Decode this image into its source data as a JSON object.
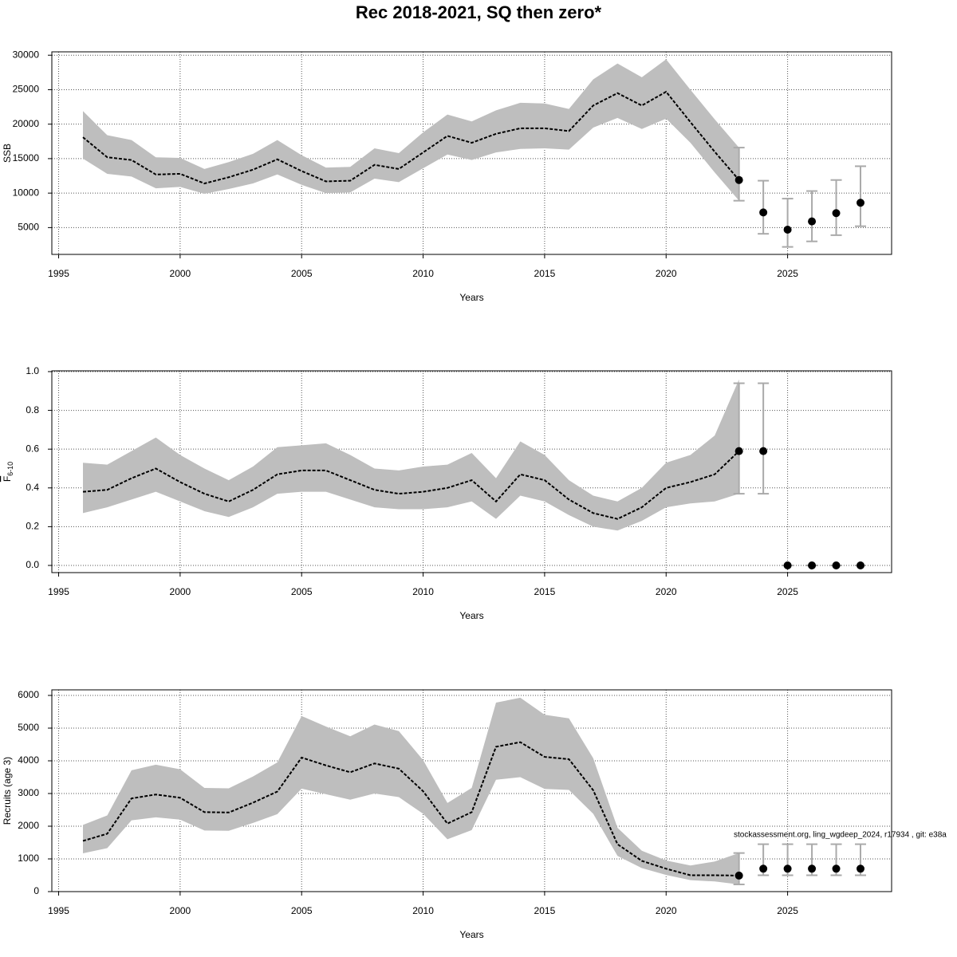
{
  "title": "Rec 2018-2021, SQ then zero*",
  "annotation": "stockassessment.org, ling_wgdeep_2024, r17934 , git: e38a",
  "chart_data": [
    {
      "type": "band-line",
      "ylabel": "SSB",
      "xlabel": "Years",
      "band_color": "#bebebe",
      "line_color": "#000000",
      "errorbar_color": "#aaaaaa",
      "grid": true,
      "xlim": [
        1994.72,
        2029.28
      ],
      "xticks": [
        1995,
        2000,
        2005,
        2010,
        2015,
        2020,
        2025
      ],
      "ylim": [
        1112,
        30488
      ],
      "yticks": [
        5000,
        10000,
        15000,
        20000,
        25000,
        30000
      ],
      "x": [
        1996,
        1997,
        1998,
        1999,
        2000,
        2001,
        2002,
        2003,
        2004,
        2005,
        2006,
        2007,
        2008,
        2009,
        2010,
        2011,
        2012,
        2013,
        2014,
        2015,
        2016,
        2017,
        2018,
        2019,
        2020,
        2021,
        2022,
        2023
      ],
      "values": [
        18100,
        15200,
        14800,
        12700,
        12800,
        11400,
        12300,
        13400,
        14900,
        13200,
        11700,
        11800,
        14100,
        13500,
        15900,
        18300,
        17300,
        18600,
        19400,
        19400,
        19000,
        22700,
        24500,
        22700,
        24700,
        20300,
        16000,
        11900
      ],
      "lower": [
        15000,
        12800,
        12400,
        10700,
        10900,
        9900,
        10600,
        11400,
        12700,
        11200,
        10000,
        10100,
        12100,
        11600,
        13600,
        15600,
        14800,
        15900,
        16400,
        16500,
        16300,
        19500,
        20900,
        19300,
        20800,
        17300,
        13000,
        8900
      ],
      "upper": [
        21900,
        18400,
        17700,
        15200,
        15100,
        13500,
        14500,
        15700,
        17700,
        15500,
        13700,
        13800,
        16500,
        15800,
        18800,
        21400,
        20400,
        22000,
        23100,
        23000,
        22200,
        26500,
        28800,
        26800,
        29400,
        25000,
        20700,
        16600
      ],
      "forecast": {
        "x": [
          2023,
          2024,
          2025,
          2026,
          2027,
          2028
        ],
        "values": [
          11900,
          7200,
          4700,
          5900,
          7100,
          8600
        ],
        "lower": [
          8900,
          4100,
          2200,
          3000,
          3900,
          5200
        ],
        "upper": [
          16600,
          11800,
          9200,
          10300,
          11900,
          13900
        ]
      }
    },
    {
      "type": "band-line",
      "ylabel": "F",
      "ylabel_subscript": "6-10",
      "xlabel": "Years",
      "band_color": "#bebebe",
      "line_color": "#000000",
      "errorbar_color": "#aaaaaa",
      "grid": true,
      "xlim": [
        1994.72,
        2029.28
      ],
      "xticks": [
        1995,
        2000,
        2005,
        2010,
        2015,
        2020,
        2025
      ],
      "ylim": [
        -0.037,
        1.004
      ],
      "yticks": [
        {
          "value": 0,
          "label": "0.0"
        },
        0.2,
        0.4,
        0.6,
        0.8,
        {
          "value": 1,
          "label": "1.0"
        }
      ],
      "x": [
        1996,
        1997,
        1998,
        1999,
        2000,
        2001,
        2002,
        2003,
        2004,
        2005,
        2006,
        2007,
        2008,
        2009,
        2010,
        2011,
        2012,
        2013,
        2014,
        2015,
        2016,
        2017,
        2018,
        2019,
        2020,
        2021,
        2022,
        2023
      ],
      "values": [
        0.38,
        0.39,
        0.45,
        0.5,
        0.43,
        0.37,
        0.33,
        0.39,
        0.47,
        0.49,
        0.49,
        0.44,
        0.39,
        0.37,
        0.38,
        0.4,
        0.44,
        0.33,
        0.47,
        0.44,
        0.34,
        0.27,
        0.24,
        0.3,
        0.4,
        0.43,
        0.47,
        0.59
      ],
      "lower": [
        0.27,
        0.3,
        0.34,
        0.38,
        0.33,
        0.28,
        0.25,
        0.3,
        0.37,
        0.38,
        0.38,
        0.34,
        0.3,
        0.29,
        0.29,
        0.3,
        0.33,
        0.24,
        0.36,
        0.33,
        0.26,
        0.2,
        0.18,
        0.23,
        0.3,
        0.32,
        0.33,
        0.37
      ],
      "upper": [
        0.53,
        0.52,
        0.59,
        0.66,
        0.57,
        0.5,
        0.44,
        0.51,
        0.61,
        0.62,
        0.63,
        0.57,
        0.5,
        0.49,
        0.51,
        0.52,
        0.58,
        0.45,
        0.64,
        0.57,
        0.44,
        0.36,
        0.33,
        0.4,
        0.53,
        0.57,
        0.67,
        0.96
      ],
      "forecast": {
        "x": [
          2023,
          2024,
          2025,
          2026,
          2027,
          2028
        ],
        "values": [
          0.59,
          0.59,
          0,
          0,
          0,
          0
        ],
        "lower": [
          0.37,
          0.37,
          0,
          0,
          0,
          0
        ],
        "upper": [
          0.94,
          0.94,
          0,
          0,
          0,
          0
        ]
      }
    },
    {
      "type": "band-line",
      "ylabel": "Recruits (age 3)",
      "xlabel": "Years",
      "band_color": "#bebebe",
      "line_color": "#000000",
      "errorbar_color": "#aaaaaa",
      "grid": true,
      "xlim": [
        1994.72,
        2029.28
      ],
      "xticks": [
        1995,
        2000,
        2005,
        2010,
        2015,
        2020,
        2025
      ],
      "ylim": [
        0,
        6171
      ],
      "yticks": [
        0,
        1000,
        2000,
        3000,
        4000,
        5000,
        6000
      ],
      "x": [
        1996,
        1997,
        1998,
        1999,
        2000,
        2001,
        2002,
        2003,
        2004,
        2005,
        2006,
        2007,
        2008,
        2009,
        2010,
        2011,
        2012,
        2013,
        2014,
        2015,
        2016,
        2017,
        2018,
        2019,
        2020,
        2021,
        2022,
        2023
      ],
      "values": [
        1550,
        1770,
        2850,
        2970,
        2870,
        2430,
        2420,
        2720,
        3060,
        4100,
        3860,
        3650,
        3920,
        3760,
        3070,
        2080,
        2430,
        4430,
        4570,
        4120,
        4050,
        3100,
        1450,
        940,
        700,
        500,
        500,
        490
      ],
      "lower": [
        1170,
        1330,
        2180,
        2270,
        2200,
        1870,
        1860,
        2100,
        2370,
        3150,
        2980,
        2810,
        3000,
        2890,
        2380,
        1600,
        1880,
        3420,
        3500,
        3140,
        3110,
        2380,
        1090,
        720,
        510,
        350,
        310,
        220
      ],
      "upper": [
        2040,
        2330,
        3710,
        3880,
        3740,
        3170,
        3160,
        3520,
        3950,
        5370,
        5050,
        4750,
        5110,
        4910,
        4020,
        2710,
        3170,
        5780,
        5930,
        5410,
        5300,
        4080,
        1950,
        1250,
        950,
        800,
        920,
        1180
      ],
      "forecast": {
        "x": [
          2023,
          2024,
          2025,
          2026,
          2027,
          2028
        ],
        "values": [
          490,
          700,
          700,
          700,
          700,
          700
        ],
        "lower": [
          220,
          500,
          500,
          500,
          500,
          500
        ],
        "upper": [
          1180,
          1450,
          1450,
          1450,
          1450,
          1450
        ]
      }
    }
  ]
}
